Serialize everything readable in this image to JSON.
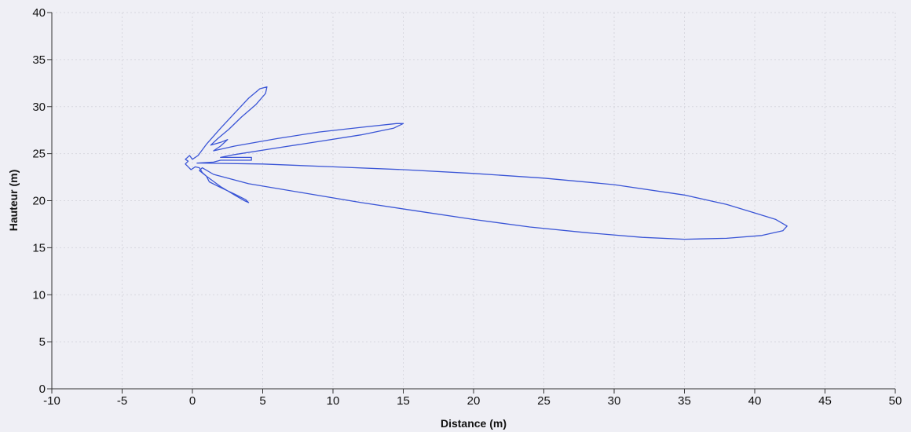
{
  "chart_data": {
    "type": "line",
    "title": "",
    "xlabel": "Distance (m)",
    "ylabel": "Hauteur (m)",
    "xlim": [
      -10,
      50
    ],
    "ylim": [
      0,
      40
    ],
    "x_ticks": [
      -10,
      -5,
      0,
      5,
      10,
      15,
      20,
      25,
      30,
      35,
      40,
      45,
      50
    ],
    "y_ticks": [
      0,
      5,
      10,
      15,
      20,
      25,
      30,
      35,
      40
    ],
    "x_tick_labels": [
      "-10",
      "-5",
      "0",
      "5",
      "10",
      "15",
      "20",
      "25",
      "30",
      "35",
      "40",
      "45",
      "50"
    ],
    "y_tick_labels": [
      "0",
      "5",
      "10",
      "15",
      "20",
      "25",
      "30",
      "35",
      "40"
    ],
    "grid": true,
    "legend": "none",
    "colors": {
      "trace": "#3a55d6",
      "background": "#efeff5",
      "grid": "#d7d7df"
    },
    "series": [
      {
        "values": [
          [
            0.3,
            24.0
          ],
          [
            5,
            23.9
          ],
          [
            10,
            23.6
          ],
          [
            15,
            23.3
          ],
          [
            20,
            22.9
          ],
          [
            25,
            22.4
          ],
          [
            30,
            21.7
          ],
          [
            35,
            20.6
          ],
          [
            38,
            19.6
          ],
          [
            40,
            18.7
          ],
          [
            41.5,
            18.0
          ],
          [
            42.3,
            17.3
          ],
          [
            42,
            16.8
          ],
          [
            40.5,
            16.3
          ],
          [
            38,
            16.0
          ],
          [
            35,
            15.9
          ],
          [
            32,
            16.1
          ],
          [
            28,
            16.6
          ],
          [
            24,
            17.2
          ],
          [
            20,
            18.0
          ],
          [
            16,
            18.9
          ],
          [
            12,
            19.8
          ],
          [
            8,
            20.8
          ],
          [
            4,
            21.8
          ],
          [
            1.5,
            22.8
          ],
          [
            0.7,
            23.5
          ],
          [
            0.5,
            23.2
          ],
          [
            1.0,
            22.6
          ],
          [
            2.0,
            21.5
          ],
          [
            3.0,
            20.6
          ],
          [
            3.7,
            20.0
          ],
          [
            4.0,
            19.8
          ],
          [
            3.8,
            20.1
          ],
          [
            3.0,
            20.7
          ],
          [
            2.0,
            21.4
          ],
          [
            1.2,
            22.0
          ],
          [
            1.0,
            22.6
          ],
          [
            0.7,
            23.0
          ],
          [
            0.5,
            23.5
          ],
          [
            0.2,
            23.6
          ],
          [
            -0.1,
            23.3
          ],
          [
            -0.3,
            23.6
          ],
          [
            -0.5,
            23.9
          ],
          [
            -0.3,
            24.2
          ],
          [
            -0.5,
            24.4
          ],
          [
            -0.2,
            24.8
          ],
          [
            0,
            24.4
          ],
          [
            0.4,
            24.8
          ],
          [
            1.0,
            26.0
          ],
          [
            2.0,
            27.7
          ],
          [
            3.0,
            29.3
          ],
          [
            4.0,
            30.9
          ],
          [
            4.8,
            31.9
          ],
          [
            5.3,
            32.1
          ],
          [
            5.2,
            31.4
          ],
          [
            4.5,
            30.2
          ],
          [
            3.5,
            28.9
          ],
          [
            2.6,
            27.6
          ],
          [
            1.8,
            26.6
          ],
          [
            1.3,
            25.9
          ],
          [
            2.0,
            26.2
          ],
          [
            2.5,
            26.5
          ],
          [
            2.0,
            25.8
          ],
          [
            1.5,
            25.3
          ],
          [
            3.0,
            25.8
          ],
          [
            6,
            26.6
          ],
          [
            9,
            27.3
          ],
          [
            12,
            27.8
          ],
          [
            14.5,
            28.2
          ],
          [
            15.0,
            28.2
          ],
          [
            14.3,
            27.7
          ],
          [
            12,
            27.0
          ],
          [
            9,
            26.3
          ],
          [
            6,
            25.6
          ],
          [
            3,
            24.9
          ],
          [
            2,
            24.6
          ],
          [
            4.2,
            24.6
          ],
          [
            4.2,
            24.3
          ],
          [
            2,
            24.3
          ],
          [
            1.5,
            24.1
          ],
          [
            0.3,
            24.0
          ]
        ]
      }
    ]
  }
}
